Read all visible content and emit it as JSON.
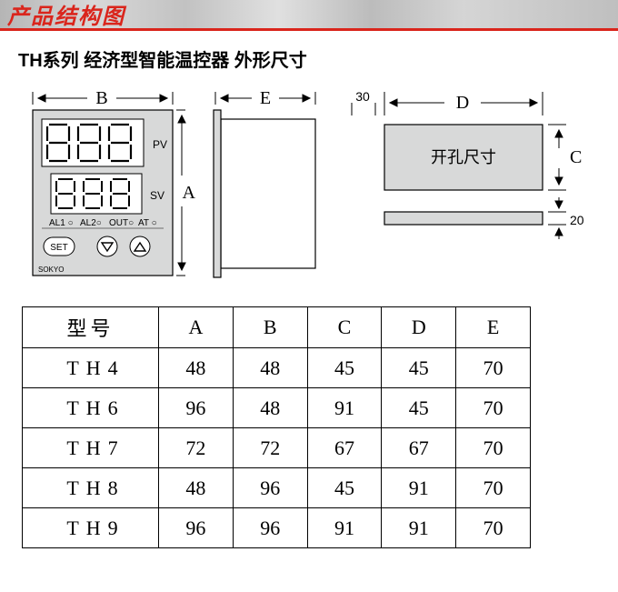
{
  "header": {
    "title": "产品结构图"
  },
  "subtitle": "TH系列 经济型智能温控器 外形尺寸",
  "front_panel": {
    "pv_label": "PV",
    "sv_label": "SV",
    "ticks": [
      "AL1 ○",
      "AL2○",
      "OUT○",
      "AT ○"
    ],
    "set_btn": "SET",
    "brand": "SOKYO",
    "dim_v": "A",
    "dim_h": "B",
    "colors": {
      "panel": "#d8d9d9",
      "display_bg": "#ffffff",
      "stroke": "#000000"
    }
  },
  "side_view": {
    "dim": "E"
  },
  "cutout": {
    "label": "开孔尺寸",
    "dim_top_left": "30",
    "dim_top": "D",
    "dim_right": "C",
    "dim_bottom": "20"
  },
  "table": {
    "headers": [
      "型号",
      "A",
      "B",
      "C",
      "D",
      "E"
    ],
    "rows": [
      [
        "TH4",
        "48",
        "48",
        "45",
        "45",
        "70"
      ],
      [
        "TH6",
        "96",
        "48",
        "91",
        "45",
        "70"
      ],
      [
        "TH7",
        "72",
        "72",
        "67",
        "67",
        "70"
      ],
      [
        "TH8",
        "48",
        "96",
        "45",
        "91",
        "70"
      ],
      [
        "TH9",
        "96",
        "96",
        "91",
        "91",
        "70"
      ]
    ]
  }
}
